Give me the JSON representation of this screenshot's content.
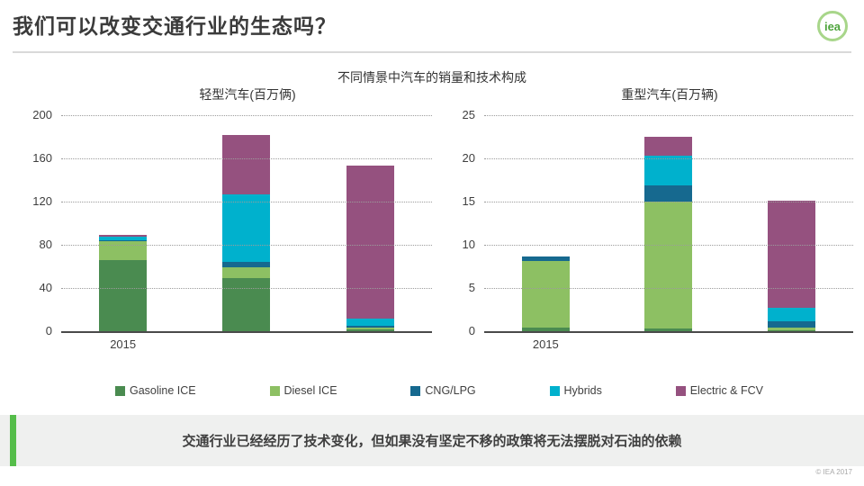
{
  "header": {
    "title": "我们可以改变交通行业的生态吗？",
    "logo_text": "iea"
  },
  "subtitle": "不同情景中汽车的销量和技术构成",
  "chart_data": [
    {
      "type": "bar",
      "stacked": true,
      "title": "轻型汽车(百万俩)",
      "categories": [
        "2015",
        "",
        ""
      ],
      "series": [
        {
          "name": "Gasoline ICE",
          "color": "#4a8b50",
          "values": [
            66,
            49,
            2
          ]
        },
        {
          "name": "Diesel ICE",
          "color": "#8dc063",
          "values": [
            17,
            10,
            1
          ]
        },
        {
          "name": "CNG/LPG",
          "color": "#16698f",
          "values": [
            1.5,
            5,
            2
          ]
        },
        {
          "name": "Hybrids",
          "color": "#00b1cd",
          "values": [
            3,
            63,
            7
          ]
        },
        {
          "name": "Electric & FCV",
          "color": "#95517f",
          "values": [
            1.5,
            55,
            141
          ]
        }
      ],
      "ylim": [
        0,
        200
      ],
      "ytick_step": 40,
      "grid": "dotted-horizontal",
      "legend_position": "shared-bottom"
    },
    {
      "type": "bar",
      "stacked": true,
      "title": "重型汽车(百万辆)",
      "categories": [
        "2015",
        "",
        ""
      ],
      "series": [
        {
          "name": "Gasoline ICE",
          "color": "#4a8b50",
          "values": [
            0.4,
            0.3,
            0.1
          ]
        },
        {
          "name": "Diesel ICE",
          "color": "#8dc063",
          "values": [
            7.7,
            14.7,
            0.3
          ]
        },
        {
          "name": "CNG/LPG",
          "color": "#16698f",
          "values": [
            0.6,
            1.9,
            0.7
          ]
        },
        {
          "name": "Hybrids",
          "color": "#00b1cd",
          "values": [
            0,
            3.4,
            1.6
          ]
        },
        {
          "name": "Electric & FCV",
          "color": "#95517f",
          "values": [
            0,
            2.2,
            12.4
          ]
        }
      ],
      "ylim": [
        0,
        25
      ],
      "ytick_step": 5,
      "grid": "dotted-horizontal",
      "legend_position": "shared-bottom"
    }
  ],
  "legend": {
    "items": [
      {
        "label": "Gasoline ICE",
        "color": "#4a8b50"
      },
      {
        "label": "Diesel ICE",
        "color": "#8dc063"
      },
      {
        "label": "CNG/LPG",
        "color": "#16698f"
      },
      {
        "label": "Hybrids",
        "color": "#00b1cd"
      },
      {
        "label": "Electric & FCV",
        "color": "#95517f"
      }
    ]
  },
  "banner": {
    "text": "交通行业已经经历了技术变化，但如果没有坚定不移的政策将无法摆脱对石油的依赖",
    "accent_color": "#55bd4a"
  },
  "footer": {
    "copyright": "© IEA 2017"
  }
}
